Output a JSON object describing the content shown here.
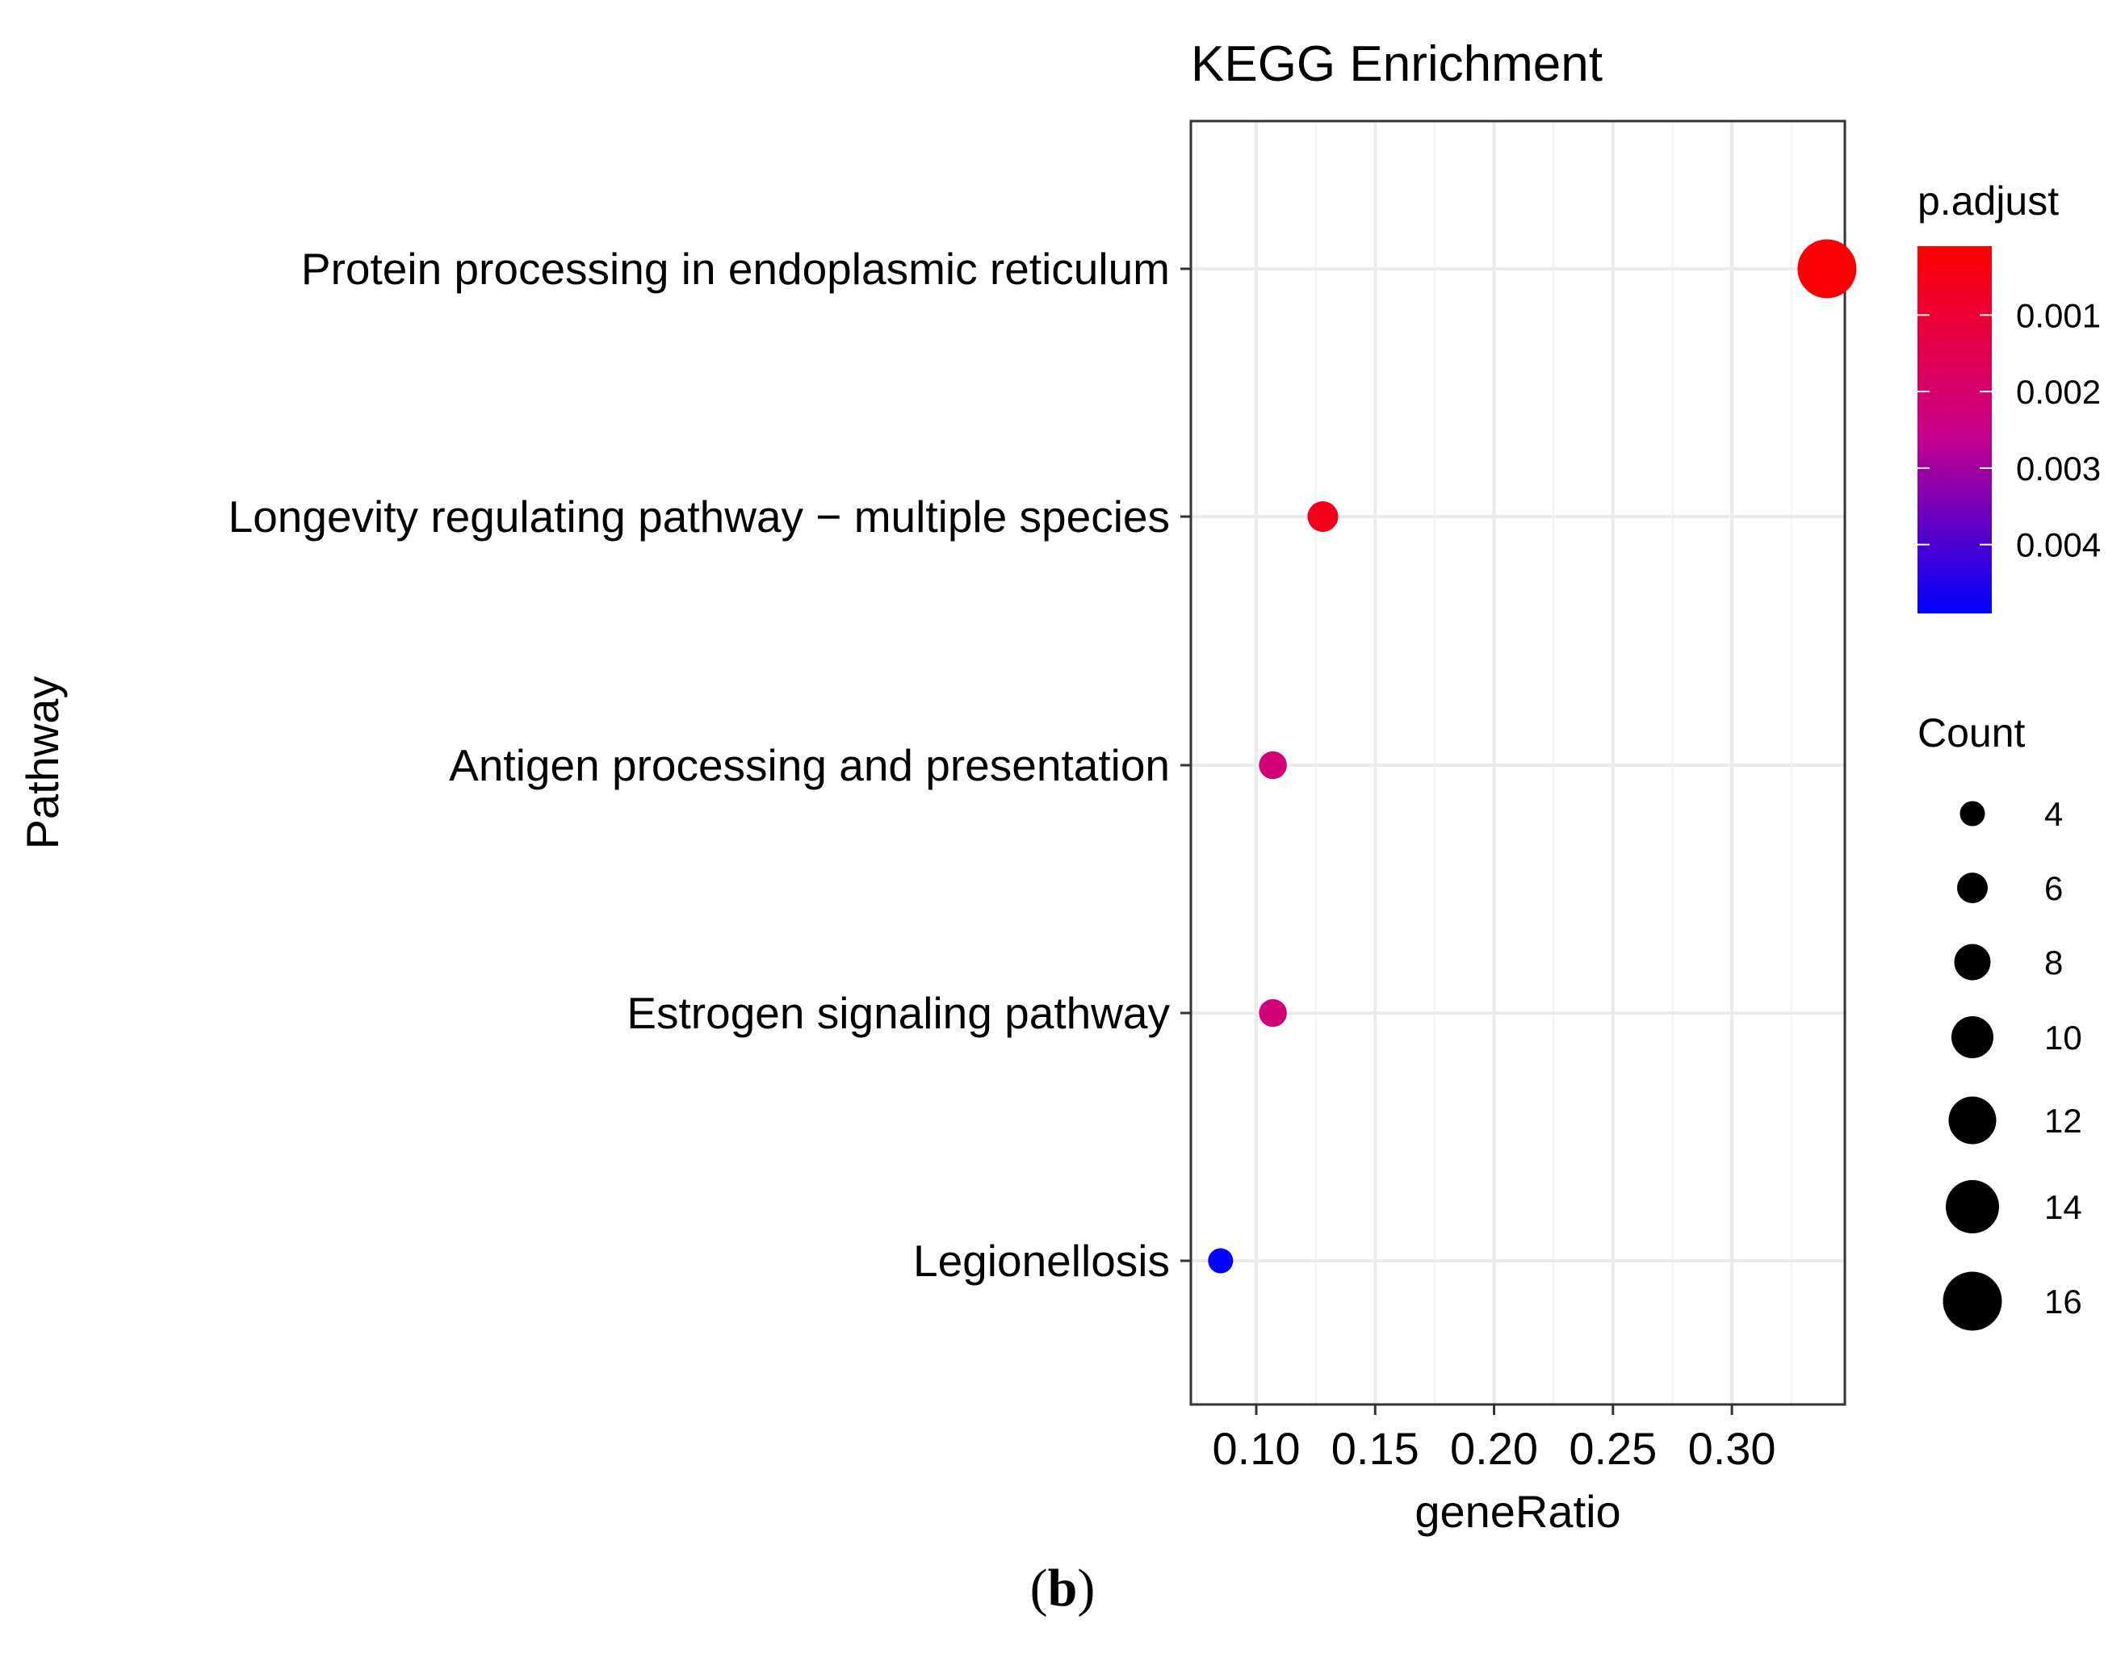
{
  "chart_data": {
    "type": "scatter",
    "title": "KEGG Enrichment",
    "xlabel": "geneRatio",
    "ylabel": "Pathway",
    "xlim": [
      0.0725,
      0.3475
    ],
    "xticks": [
      0.1,
      0.15,
      0.2,
      0.25,
      0.3
    ],
    "xtick_labels": [
      "0.10",
      "0.15",
      "0.20",
      "0.25",
      "0.30"
    ],
    "grid": true,
    "categories": [
      "Protein processing in endoplasmic reticulum",
      "Longevity regulating pathway − multiple species",
      "Antigen processing and presentation",
      "Estrogen signaling pathway",
      "Legionellosis"
    ],
    "points": [
      {
        "pathway": "Protein processing in endoplasmic reticulum",
        "geneRatio": 0.34,
        "count": 16,
        "p_adjust": 0.0002
      },
      {
        "pathway": "Longevity regulating pathway − multiple species",
        "geneRatio": 0.128,
        "count": 6,
        "p_adjust": 0.0006
      },
      {
        "pathway": "Antigen processing and presentation",
        "geneRatio": 0.107,
        "count": 5,
        "p_adjust": 0.0022
      },
      {
        "pathway": "Estrogen signaling pathway",
        "geneRatio": 0.107,
        "count": 5,
        "p_adjust": 0.0022
      },
      {
        "pathway": "Legionellosis",
        "geneRatio": 0.085,
        "count": 4,
        "p_adjust": 0.0049
      }
    ],
    "color_legend": {
      "title": "p.adjust",
      "range": [
        0.0001,
        0.0049
      ],
      "low_color": "#ff0000",
      "mid_color": "#cc0088",
      "high_color": "#0000ff",
      "breaks": [
        0.001,
        0.002,
        0.003,
        0.004
      ],
      "break_labels": [
        "0.001",
        "0.002",
        "0.003",
        "0.004"
      ]
    },
    "size_legend": {
      "title": "Count",
      "values": [
        4,
        6,
        8,
        10,
        12,
        14,
        16
      ],
      "labels": [
        "4",
        "6",
        "8",
        "10",
        "12",
        "14",
        "16"
      ]
    },
    "legend_position": "right",
    "panel_label": "b"
  },
  "panel_label": {
    "open": "(",
    "letter": "b",
    "close": ")"
  }
}
